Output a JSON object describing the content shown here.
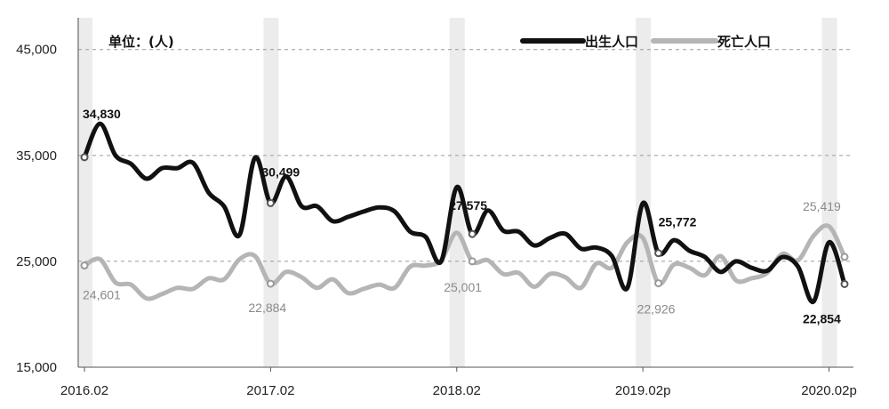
{
  "chart_data": {
    "type": "line",
    "unit_label": "单位：(人)",
    "y_ticks": [
      "45,000",
      "35,000",
      "25,000",
      "15,000"
    ],
    "y_tick_values": [
      45000,
      35000,
      25000,
      15000
    ],
    "ylim": [
      15000,
      48000
    ],
    "x_tick_labels": [
      {
        "label": "2016.02",
        "index": 0
      },
      {
        "label": "2017.02",
        "index": 12
      },
      {
        "label": "2018.02",
        "index": 24
      },
      {
        "label": "2019.02p",
        "index": 36
      },
      {
        "label": "2020.02p",
        "index": 48
      }
    ],
    "highlight_months": [
      0,
      12,
      24,
      36,
      48
    ],
    "legend_position": "top-right",
    "grid": "horizontal-dashed",
    "series": [
      {
        "name": "出生人口",
        "color": "#111111",
        "values": [
          34830,
          38000,
          35000,
          34200,
          32800,
          33800,
          33800,
          34300,
          31500,
          30200,
          27500,
          34800,
          30499,
          33000,
          30200,
          30200,
          28800,
          29200,
          29700,
          30100,
          29700,
          27800,
          27300,
          25000,
          32000,
          27575,
          29800,
          27900,
          27800,
          26500,
          27200,
          27600,
          26200,
          26300,
          25500,
          22500,
          30500,
          25772,
          27000,
          26000,
          25400,
          24000,
          25000,
          24400,
          24100,
          25400,
          24500,
          21200,
          26800,
          22854
        ]
      },
      {
        "name": "死亡人口",
        "color": "#b5b5b5",
        "values": [
          24601,
          25200,
          23000,
          22800,
          21500,
          21900,
          22500,
          22400,
          23400,
          23300,
          25200,
          25500,
          22884,
          24000,
          23500,
          22500,
          23300,
          22000,
          22400,
          22800,
          22500,
          24500,
          24600,
          25100,
          27700,
          25001,
          25100,
          23800,
          23900,
          22600,
          23800,
          23500,
          22500,
          24800,
          24400,
          26800,
          27200,
          22926,
          24700,
          24400,
          23700,
          25500,
          23200,
          23400,
          23900,
          25700,
          25100,
          27400,
          28300,
          25419
        ]
      }
    ],
    "annotations": [
      {
        "series": 0,
        "index": 0,
        "text": "34,830"
      },
      {
        "series": 0,
        "index": 12,
        "text": "30,499"
      },
      {
        "series": 0,
        "index": 25,
        "text": "27,575"
      },
      {
        "series": 0,
        "index": 37,
        "text": "25,772"
      },
      {
        "series": 0,
        "index": 49,
        "text": "22,854"
      },
      {
        "series": 1,
        "index": 0,
        "text": "24,601"
      },
      {
        "series": 1,
        "index": 12,
        "text": "22,884"
      },
      {
        "series": 1,
        "index": 25,
        "text": "25,001"
      },
      {
        "series": 1,
        "index": 37,
        "text": "22,926"
      },
      {
        "series": 1,
        "index": 49,
        "text": "25,419"
      }
    ]
  }
}
